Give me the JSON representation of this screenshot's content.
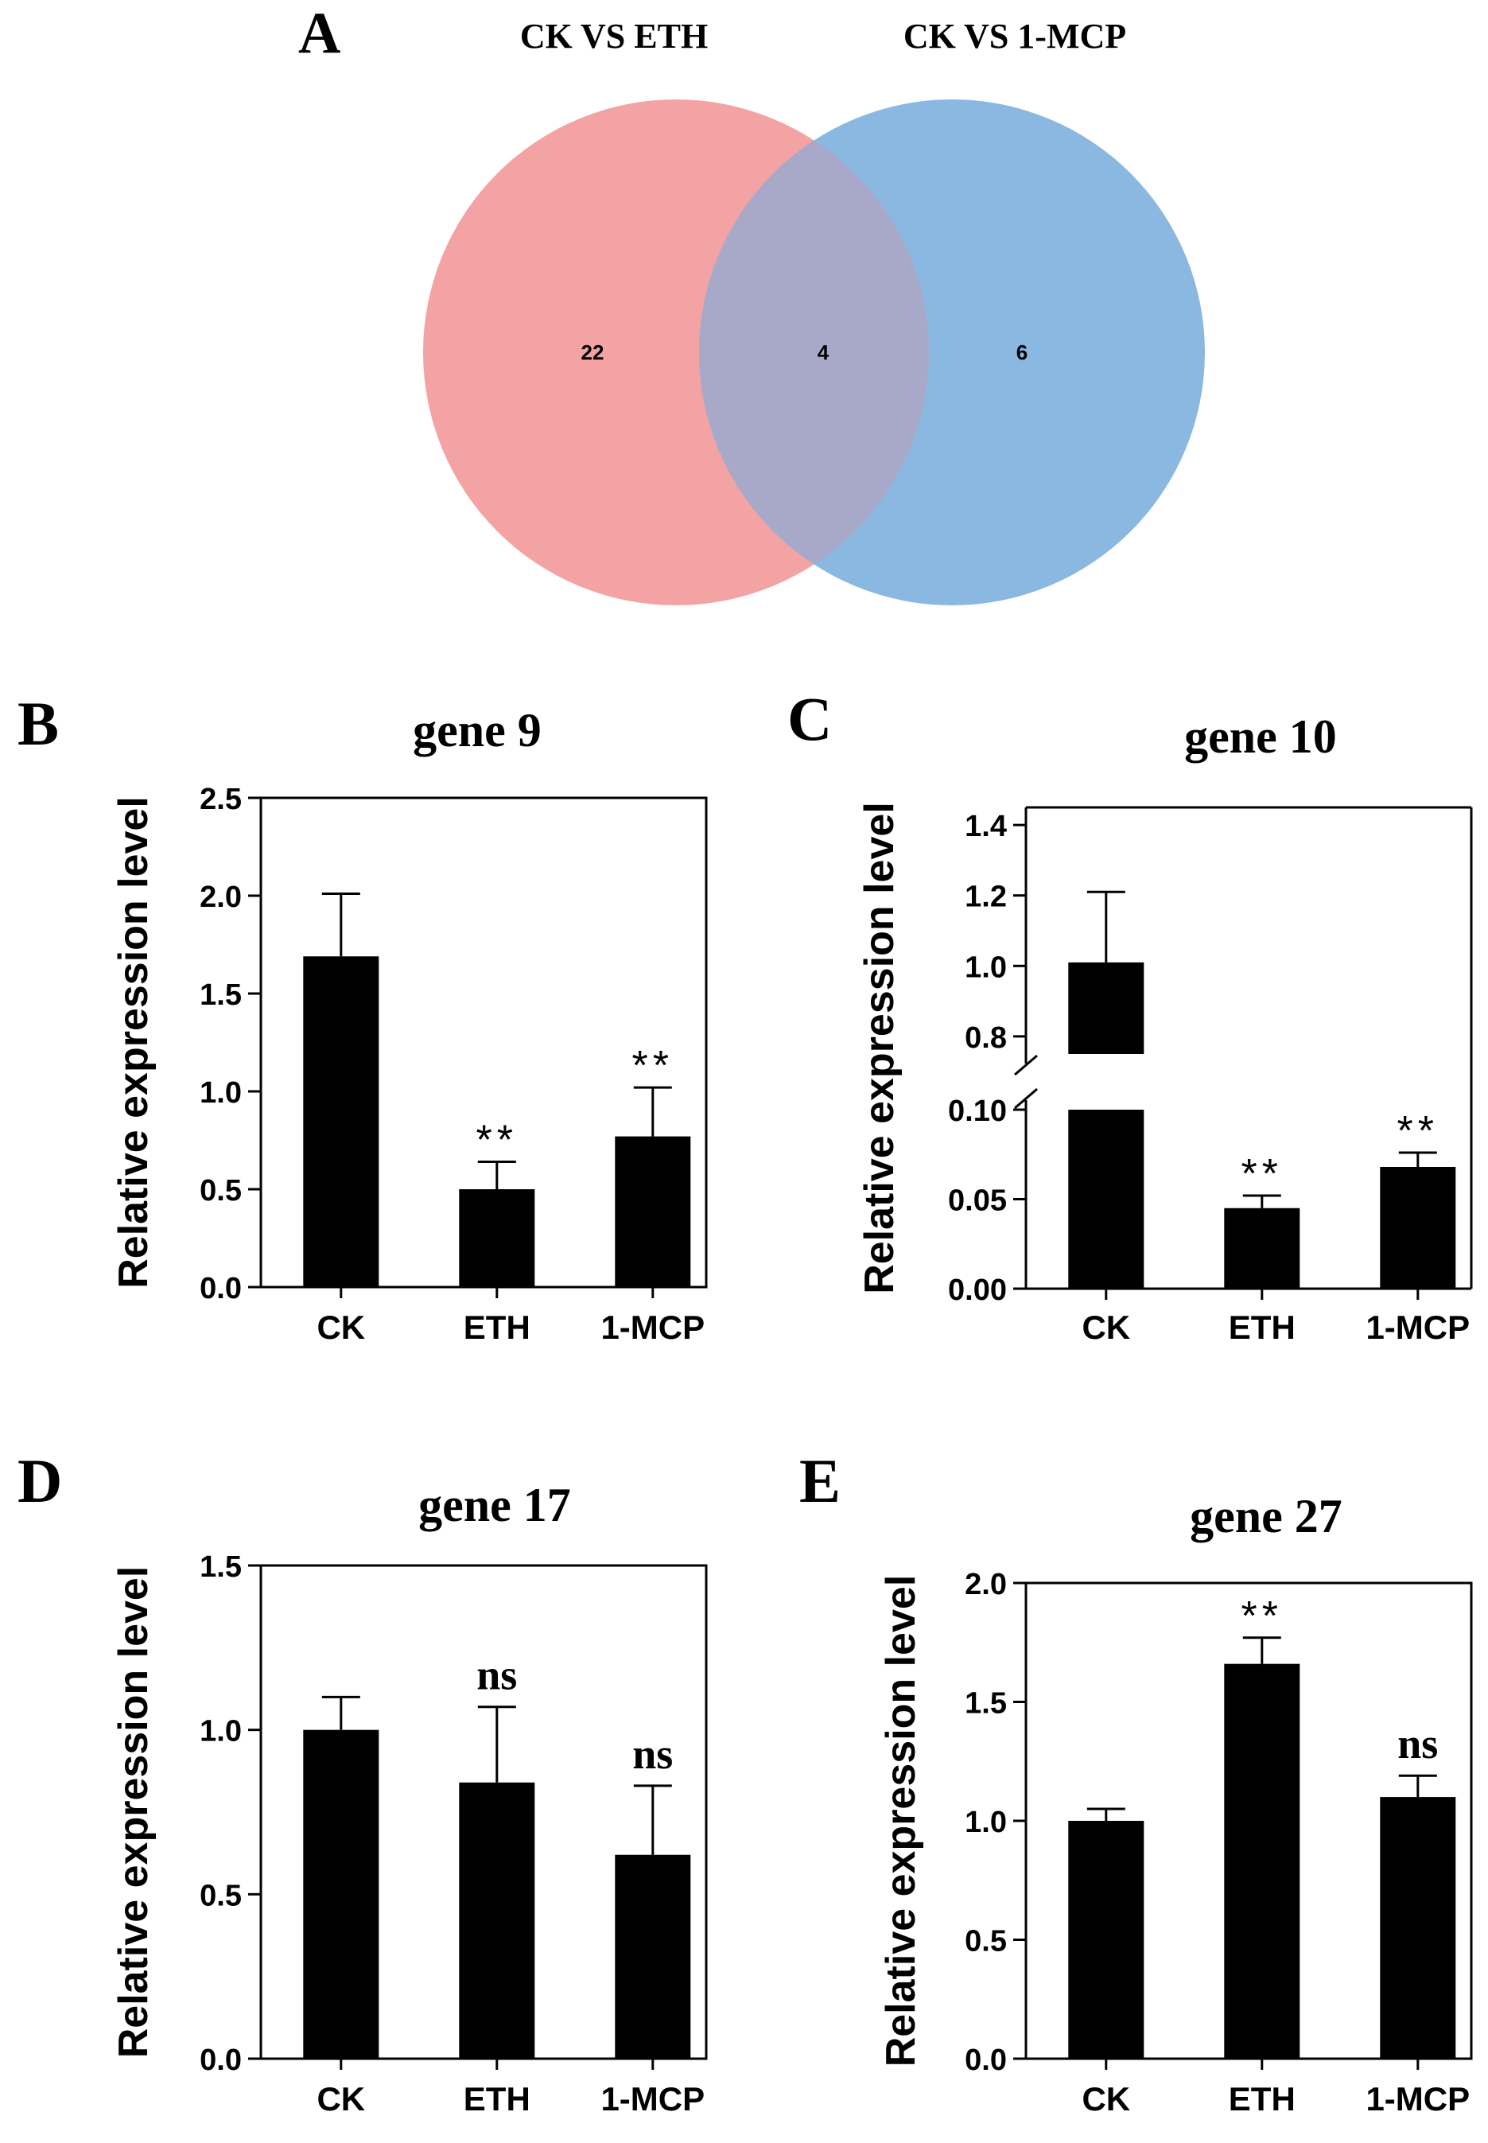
{
  "chart_data": [
    {
      "type": "venn",
      "panel_label": "A",
      "sets": [
        {
          "name": "CK VS ETH",
          "color": "#f4a3a5",
          "only_count": "22"
        },
        {
          "name": "CK VS 1-MCP",
          "color": "#8bb8e1",
          "only_count": "6"
        }
      ],
      "intersection": {
        "count": "4",
        "color": "#a8a9c8"
      }
    },
    {
      "type": "bar",
      "panel_label": "B",
      "title": "gene 9",
      "ylabel": "Relative expression level",
      "categories": [
        "CK",
        "ETH",
        "1-MCP"
      ],
      "values": [
        1.69,
        0.5,
        0.77
      ],
      "errors": [
        0.32,
        0.14,
        0.25
      ],
      "annotations": [
        "",
        "**",
        "**"
      ],
      "ylim": [
        0,
        2.5
      ],
      "yticks": [
        "0.0",
        "0.5",
        "1.0",
        "1.5",
        "2.0",
        "2.5"
      ],
      "bar_color": "#000000"
    },
    {
      "type": "bar",
      "panel_label": "C",
      "title": "gene 10",
      "ylabel": "Relative expression level",
      "categories": [
        "CK",
        "ETH",
        "1-MCP"
      ],
      "values": [
        1.01,
        0.045,
        0.068
      ],
      "errors": [
        0.2,
        0.007,
        0.008
      ],
      "annotations": [
        "",
        "**",
        "**"
      ],
      "broken_axis": {
        "lower": {
          "ylim": [
            0,
            0.1
          ],
          "yticks": [
            "0.00",
            "0.05",
            "0.10"
          ]
        },
        "upper": {
          "ylim": [
            0.75,
            1.45
          ],
          "yticks": [
            "0.8",
            "1.0",
            "1.2",
            "1.4"
          ]
        }
      },
      "bar_color": "#000000"
    },
    {
      "type": "bar",
      "panel_label": "D",
      "title": "gene 17",
      "ylabel": "Relative expression level",
      "categories": [
        "CK",
        "ETH",
        "1-MCP"
      ],
      "values": [
        1.0,
        0.84,
        0.62
      ],
      "errors": [
        0.1,
        0.23,
        0.21
      ],
      "annotations": [
        "",
        "ns",
        "ns"
      ],
      "ylim": [
        0,
        1.5
      ],
      "yticks": [
        "0.0",
        "0.5",
        "1.0",
        "1.5"
      ],
      "bar_color": "#000000"
    },
    {
      "type": "bar",
      "panel_label": "E",
      "title": "gene 27",
      "ylabel": "Relative expression level",
      "categories": [
        "CK",
        "ETH",
        "1-MCP"
      ],
      "values": [
        1.0,
        1.66,
        1.1
      ],
      "errors": [
        0.05,
        0.11,
        0.09
      ],
      "annotations": [
        "",
        "**",
        "ns"
      ],
      "ylim": [
        0,
        2.0
      ],
      "yticks": [
        "0.0",
        "0.5",
        "1.0",
        "1.5",
        "2.0"
      ],
      "bar_color": "#000000"
    }
  ]
}
